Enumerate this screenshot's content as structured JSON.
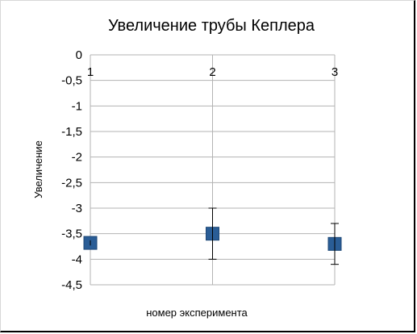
{
  "chart_data": {
    "type": "scatter",
    "title": "Увеличение трубы Кеплера",
    "xlabel": "номер эксперимента",
    "ylabel": "Увеличение",
    "x_ticks": [
      "1",
      "2",
      "3"
    ],
    "y_ticks": [
      "0",
      "-0,5",
      "-1",
      "-1,5",
      "-2",
      "-2,5",
      "-3",
      "-3,5",
      "-4",
      "-4,5"
    ],
    "xlim": [
      1,
      3
    ],
    "ylim": [
      -4.5,
      0
    ],
    "x_axis_position": "top",
    "grid": true,
    "marker_color": "#2a5d96",
    "points": [
      {
        "x": 1,
        "y": -3.68,
        "err_low": 0.05,
        "err_high": 0.05
      },
      {
        "x": 2,
        "y": -3.5,
        "err_low": 0.5,
        "err_high": 0.5
      },
      {
        "x": 3,
        "y": -3.7,
        "err_low": 0.4,
        "err_high": 0.4
      }
    ]
  }
}
